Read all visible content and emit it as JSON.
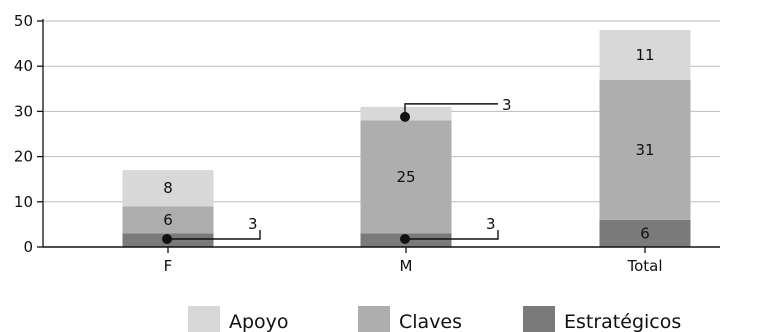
{
  "chart_data": {
    "type": "bar",
    "stacked": true,
    "categories": [
      "F",
      "M",
      "Total"
    ],
    "series": [
      {
        "name": "Estratégicos",
        "values": [
          3,
          3,
          6
        ],
        "color": "#7a7a7a"
      },
      {
        "name": "Claves",
        "values": [
          6,
          25,
          31
        ],
        "color": "#aeaeae"
      },
      {
        "name": "Apoyo",
        "values": [
          8,
          3,
          11
        ],
        "color": "#d8d8d8"
      }
    ],
    "yticks": [
      0,
      10,
      20,
      30,
      40,
      50
    ],
    "ylim": [
      0,
      50
    ],
    "grid": true,
    "legend_position": "bottom",
    "legend_order": [
      "Apoyo",
      "Claves",
      "Estratégicos"
    ],
    "data_labels": [
      {
        "category": "F",
        "series": "Estratégicos",
        "text": "3",
        "callout": true
      },
      {
        "category": "F",
        "series": "Claves",
        "text": "6"
      },
      {
        "category": "F",
        "series": "Apoyo",
        "text": "8"
      },
      {
        "category": "M",
        "series": "Estratégicos",
        "text": "3",
        "callout": true
      },
      {
        "category": "M",
        "series": "Claves",
        "text": "25"
      },
      {
        "category": "M",
        "series": "Apoyo",
        "text": "3",
        "callout": true
      },
      {
        "category": "Total",
        "series": "Estratégicos",
        "text": "6"
      },
      {
        "category": "Total",
        "series": "Claves",
        "text": "31"
      },
      {
        "category": "Total",
        "series": "Apoyo",
        "text": "11"
      }
    ]
  }
}
